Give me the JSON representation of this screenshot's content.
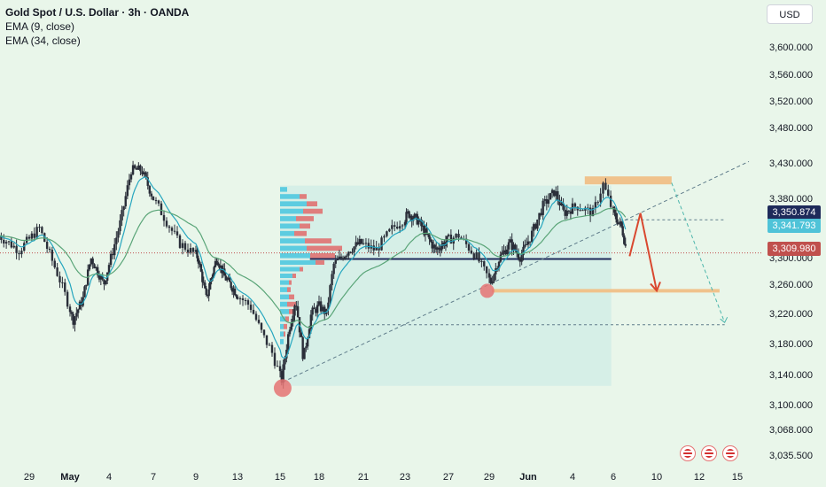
{
  "legend": {
    "title": "Gold Spot / U.S. Dollar · 3h · OANDA",
    "ema_fast": "EMA (9, close)",
    "ema_slow": "EMA (34, close)"
  },
  "currency_button": "USD",
  "colors": {
    "background": "#e9f6ea",
    "candle": "#2a2e39",
    "ema_fast": "#26a6bf",
    "ema_slow": "#5aa578",
    "range_box": "#d2ede6",
    "volume_blue": "#48c6de",
    "volume_red": "#e06a6a",
    "resistance": "#f0c28c",
    "support_line": "#1e2a5a",
    "pivot_circle": "#e57373",
    "arrow": "#d9482f"
  },
  "price_tags": {
    "ema_34": {
      "value": "3,350.874",
      "color": "#1e2a5a"
    },
    "ema_9": {
      "value": "3,341.793",
      "color": "#4fc3d8"
    },
    "last": {
      "value": "3,309.980",
      "color": "#c0504d"
    }
  },
  "chart_data": {
    "type": "candlestick",
    "title": "Gold Spot / U.S. Dollar · 3h · OANDA",
    "ylim": [
      3035.5,
      3640
    ],
    "yticks": [
      "3,600.000",
      "3,560.000",
      "3,520.000",
      "3,480.000",
      "3,430.000",
      "3,380.000",
      "3,300.000",
      "3,260.000",
      "3,220.000",
      "3,180.000",
      "3,140.000",
      "3,100.000",
      "3,068.000",
      "3,035.500"
    ],
    "ytick_values": [
      3600,
      3560,
      3520,
      3480,
      3430,
      3380,
      3300,
      3260,
      3220,
      3180,
      3140,
      3100,
      3068,
      3035.5
    ],
    "xticks": [
      "29",
      "May",
      "4",
      "7",
      "9",
      "13",
      "15",
      "18",
      "21",
      "23",
      "27",
      "29",
      "Jun",
      "4",
      "6",
      "10",
      "12",
      "15"
    ],
    "series": [
      {
        "name": "EMA (9, close)",
        "values": []
      },
      {
        "name": "EMA (34, close)",
        "values": []
      }
    ],
    "key_prices": {
      "ema_34": 3350.874,
      "ema_9": 3341.793,
      "last": 3309.98,
      "resistance_zone": [
        3398,
        3406
      ],
      "support_line": 3298,
      "target_level": 3251,
      "lower_dashed": 3205,
      "upper_dashed": 3351,
      "low_pivot": 3122,
      "mid_pivot": 3251
    },
    "grid": false,
    "legend": "top-left"
  }
}
